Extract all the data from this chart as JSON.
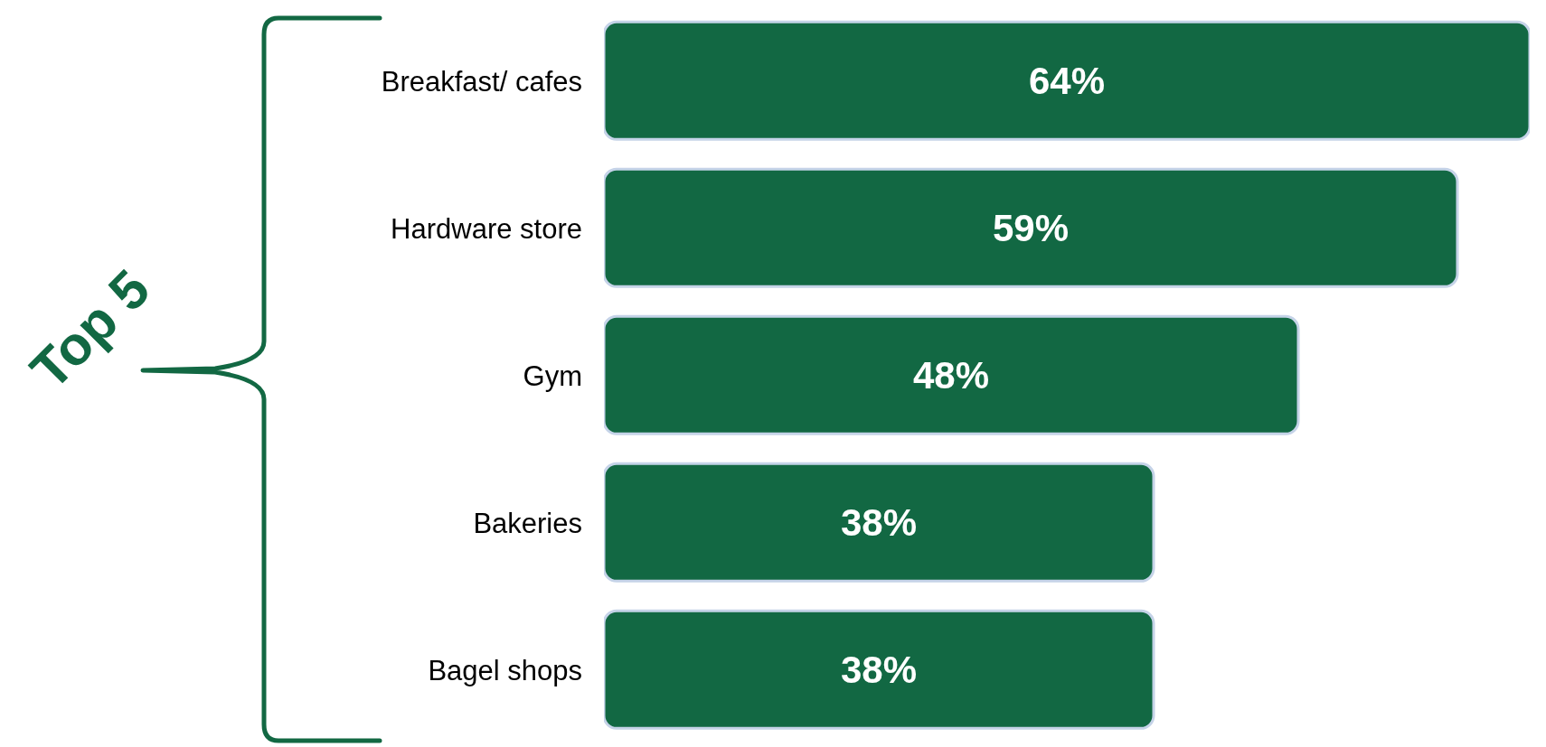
{
  "chart_data": {
    "type": "bar",
    "orientation": "horizontal",
    "categories": [
      "Breakfast/ cafes",
      "Hardware store",
      "Gym",
      "Bakeries",
      "Bagel shops"
    ],
    "values": [
      64,
      59,
      48,
      38,
      38
    ],
    "value_labels": [
      "64%",
      "59%",
      "48%",
      "38%",
      "38%"
    ],
    "color": "#126843",
    "annotations": [
      "Top 5"
    ]
  }
}
